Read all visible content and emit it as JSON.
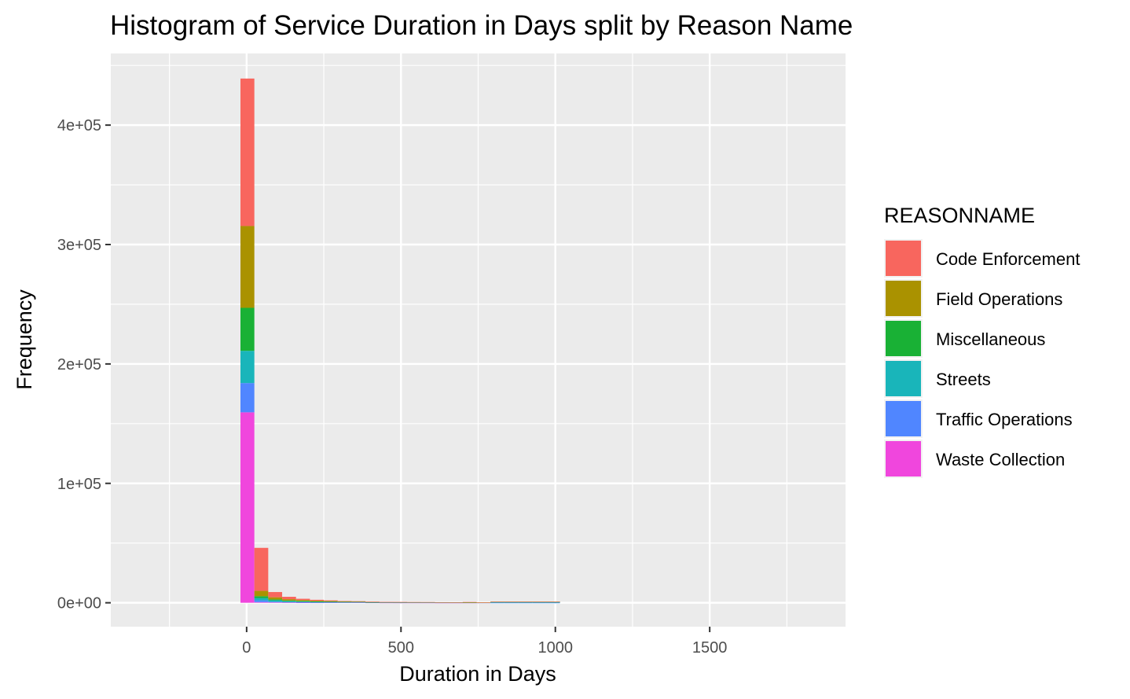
{
  "chart_data": {
    "type": "bar",
    "stacked": true,
    "title": "Histogram of Service Duration in Days split by Reason Name",
    "xlabel": "Duration in Days",
    "ylabel": "Frequency",
    "xlim": [
      -440,
      1940
    ],
    "ylim": [
      -20000,
      460000
    ],
    "x_ticks": [
      {
        "value": 0,
        "label": "0"
      },
      {
        "value": 500,
        "label": "500"
      },
      {
        "value": 1000,
        "label": "1000"
      },
      {
        "value": 1500,
        "label": "1500"
      }
    ],
    "y_ticks": [
      {
        "value": 0,
        "label": "0e+00"
      },
      {
        "value": 100000,
        "label": "1e+05"
      },
      {
        "value": 200000,
        "label": "2e+05"
      },
      {
        "value": 300000,
        "label": "3e+05"
      },
      {
        "value": 400000,
        "label": "4e+05"
      }
    ],
    "grid": true,
    "bin_width": 45,
    "bin_starts": [
      -20,
      25,
      70,
      115,
      160,
      205,
      250,
      295,
      340,
      385,
      430,
      475,
      520,
      565,
      610,
      655,
      700,
      745,
      790,
      835,
      880,
      925,
      970,
      1015
    ],
    "legend": {
      "title": "REASONNAME",
      "position": "right"
    },
    "series": [
      {
        "name": "Waste Collection",
        "color": "#F046DD",
        "values": [
          159500,
          500,
          300,
          200,
          150,
          100,
          200,
          300,
          300,
          100,
          50,
          50,
          50,
          50,
          30,
          30,
          30,
          0,
          0,
          0,
          0,
          0,
          0,
          0
        ]
      },
      {
        "name": "Traffic Operations",
        "color": "#5086FF",
        "values": [
          24500,
          1500,
          600,
          400,
          300,
          200,
          150,
          100,
          100,
          80,
          80,
          60,
          60,
          60,
          40,
          40,
          40,
          20,
          20,
          20,
          20,
          20,
          20,
          0
        ]
      },
      {
        "name": "Streets",
        "color": "#19B5BA",
        "values": [
          27000,
          2000,
          1200,
          800,
          600,
          500,
          400,
          300,
          300,
          250,
          250,
          250,
          200,
          200,
          200,
          180,
          180,
          150,
          800,
          800,
          800,
          800,
          800,
          0
        ]
      },
      {
        "name": "Miscellaneous",
        "color": "#19B135",
        "values": [
          36000,
          1500,
          700,
          500,
          400,
          300,
          250,
          200,
          200,
          150,
          100,
          100,
          100,
          100,
          80,
          80,
          60,
          40,
          40,
          40,
          40,
          40,
          40,
          0
        ]
      },
      {
        "name": "Field Operations",
        "color": "#AA9200",
        "values": [
          68500,
          4500,
          1800,
          1100,
          800,
          600,
          400,
          300,
          200,
          150,
          100,
          100,
          80,
          60,
          40,
          40,
          40,
          20,
          20,
          20,
          20,
          20,
          20,
          0
        ]
      },
      {
        "name": "Code Enforcement",
        "color": "#F8665E",
        "values": [
          123500,
          36000,
          4400,
          2000,
          1100,
          800,
          600,
          300,
          200,
          200,
          100,
          100,
          80,
          80,
          60,
          60,
          300,
          20,
          20,
          20,
          20,
          20,
          20,
          0
        ]
      }
    ],
    "legend_order": [
      "Code Enforcement",
      "Field Operations",
      "Miscellaneous",
      "Streets",
      "Traffic Operations",
      "Waste Collection"
    ]
  }
}
